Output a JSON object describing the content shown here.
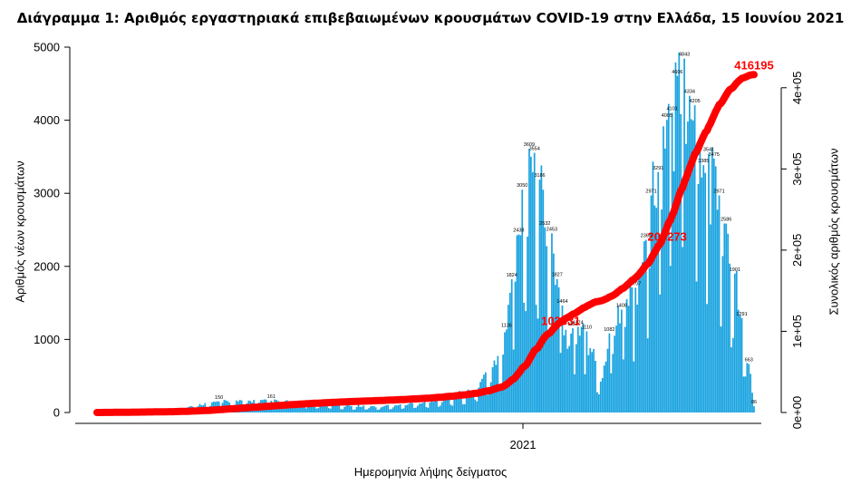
{
  "chart_data": {
    "type": "bar",
    "title": "Διάγραμμα 1: Αριθμός εργαστηριακά επιβεβαιωμένων κρουσμάτων COVID-19 στην Ελλάδα, 15 Ιουνίου 2021",
    "xlabel": "Ημερομηνία λήψης δείγματος",
    "ylabel": "Αριθμός νέων κρουσμάτων",
    "y2label": "Συνολικός αριθμός κρουσμάτων",
    "x_tick_labels": [
      "2021"
    ],
    "ylim": [
      0,
      5000
    ],
    "y_ticks": [
      "0",
      "1000",
      "2000",
      "3000",
      "4000",
      "5000"
    ],
    "y2lim": [
      0,
      450000
    ],
    "y2_ticks": [
      "0e+00",
      "1e+05",
      "2e+05",
      "3e+05",
      "4e+05"
    ],
    "bar_color": "#1aa3e0",
    "line_color": "#ff0000",
    "series": [
      {
        "name": "Αριθμός νέων κρουσμάτων",
        "type": "bar",
        "labeled_values": [
          {
            "day": 0,
            "value": 0
          },
          {
            "day": 70,
            "value": 150
          },
          {
            "day": 100,
            "value": 161
          },
          {
            "day": 235,
            "value": 1136
          },
          {
            "day": 238,
            "value": 1824
          },
          {
            "day": 242,
            "value": 2438
          },
          {
            "day": 244,
            "value": 3050
          },
          {
            "day": 248,
            "value": 3609
          },
          {
            "day": 251,
            "value": 3554
          },
          {
            "day": 254,
            "value": 3186
          },
          {
            "day": 257,
            "value": 2532
          },
          {
            "day": 261,
            "value": 2453
          },
          {
            "day": 264,
            "value": 1827
          },
          {
            "day": 267,
            "value": 1464
          },
          {
            "day": 273,
            "value": 1153
          },
          {
            "day": 276,
            "value": 1174
          },
          {
            "day": 281,
            "value": 1110
          },
          {
            "day": 294,
            "value": 1082
          },
          {
            "day": 301,
            "value": 1408
          },
          {
            "day": 309,
            "value": 1707
          },
          {
            "day": 315,
            "value": 2364
          },
          {
            "day": 318,
            "value": 2971
          },
          {
            "day": 322,
            "value": 3291
          },
          {
            "day": 327,
            "value": 4005
          },
          {
            "day": 330,
            "value": 4101
          },
          {
            "day": 333,
            "value": 4606
          },
          {
            "day": 337,
            "value": 4843
          },
          {
            "day": 340,
            "value": 4334
          },
          {
            "day": 343,
            "value": 4205
          },
          {
            "day": 348,
            "value": 3385
          },
          {
            "day": 351,
            "value": 3541
          },
          {
            "day": 354,
            "value": 3475
          },
          {
            "day": 357,
            "value": 2971
          },
          {
            "day": 361,
            "value": 2586
          },
          {
            "day": 366,
            "value": 1901
          },
          {
            "day": 370,
            "value": 1291
          },
          {
            "day": 374,
            "value": 663
          },
          {
            "day": 377,
            "value": 86
          }
        ]
      },
      {
        "name": "Συνολικός αριθμός κρουσμάτων",
        "type": "line",
        "axis": "right",
        "labeled_values": [
          {
            "day": 262,
            "value": 103331
          },
          {
            "day": 323,
            "value": 207273
          },
          {
            "day": 377,
            "value": 416195
          }
        ]
      }
    ],
    "annotations": [
      "103331",
      "207273",
      "416195"
    ]
  }
}
